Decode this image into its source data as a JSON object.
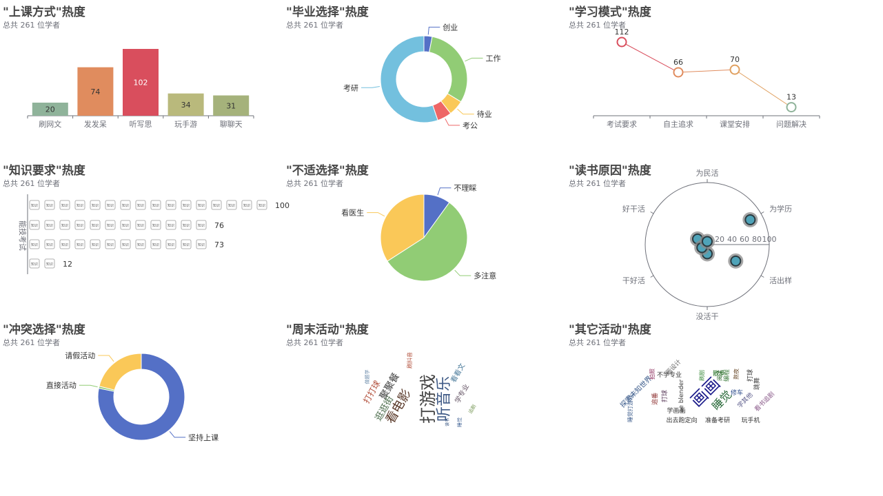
{
  "subtitle_text": "总共 261 位学者",
  "panels": [
    {
      "title": "\"上课方式\"热度"
    },
    {
      "title": "\"毕业选择\"热度"
    },
    {
      "title": "\"学习模式\"热度"
    },
    {
      "title": "\"知识要求\"热度"
    },
    {
      "title": "\"不适选择\"热度"
    },
    {
      "title": "\"读书原因\"热度"
    },
    {
      "title": "\"冲突选择\"热度"
    },
    {
      "title": "\"周末活动\"热度"
    },
    {
      "title": "\"其它活动\"热度"
    }
  ],
  "chart_data": [
    {
      "type": "bar",
      "title": "\"上课方式\"热度",
      "subtitle": "总共 261 位学者",
      "categories": [
        "刷网文",
        "发发呆",
        "听写思",
        "玩手游",
        "聊聊天"
      ],
      "values": [
        20,
        74,
        102,
        34,
        31
      ],
      "colors": [
        "#8fb39a",
        "#e08c5e",
        "#d94e5d",
        "#b9b97c",
        "#a5b27b"
      ],
      "ylim": [
        0,
        102
      ]
    },
    {
      "type": "pie",
      "variant": "donut",
      "title": "\"毕业选择\"热度",
      "subtitle": "总共 261 位学者",
      "slices": [
        {
          "label": "创业",
          "value": 8,
          "color": "#5470c6"
        },
        {
          "label": "工作",
          "value": 80,
          "color": "#91cc75"
        },
        {
          "label": "待业",
          "value": 15,
          "color": "#fac858"
        },
        {
          "label": "考公",
          "value": 14,
          "color": "#ee6666"
        },
        {
          "label": "考研",
          "value": 144,
          "color": "#73c0de"
        }
      ]
    },
    {
      "type": "line",
      "title": "\"学习模式\"热度",
      "subtitle": "总共 261 位学者",
      "categories": [
        "考试要求",
        "自主追求",
        "课堂安排",
        "问题解决"
      ],
      "values": [
        112,
        66,
        70,
        13
      ],
      "colors": [
        "#d94e5d",
        "#e08c5e",
        "#e0a060",
        "#8fb39a"
      ],
      "ylim": [
        0,
        112
      ]
    },
    {
      "type": "bar",
      "variant": "pictorial",
      "title": "\"知识要求\"热度",
      "subtitle": "总共 261 位学者",
      "ylabel": "能技考试",
      "values": [
        100,
        76,
        73,
        12
      ],
      "symbol_label": "知识",
      "symbol_unit": 6.25
    },
    {
      "type": "pie",
      "title": "\"不适选择\"热度",
      "subtitle": "总共 261 位学者",
      "slices": [
        {
          "label": "不理睬",
          "value": 26,
          "color": "#5470c6"
        },
        {
          "label": "多注意",
          "value": 146,
          "color": "#91cc75"
        },
        {
          "label": "看医生",
          "value": 89,
          "color": "#fac858"
        }
      ]
    },
    {
      "type": "scatter",
      "variant": "polar",
      "title": "\"读书原因\"热度",
      "subtitle": "总共 261 位学者",
      "angle_labels": [
        "为民活",
        "为学历",
        "活出样",
        "没活干",
        "干好活",
        "好干活"
      ],
      "radius_ticks": [
        20,
        40,
        60,
        80,
        100
      ],
      "points": [
        {
          "angle_label": "为学历",
          "r": 80
        },
        {
          "angle_label": "活出样",
          "r": 53
        },
        {
          "angle_label": "好干活",
          "r": 18
        },
        {
          "angle_label": "没活干",
          "r": 15
        },
        {
          "angle_label": "干好活",
          "r": 10
        },
        {
          "angle_label": "为民活",
          "r": 5
        }
      ]
    },
    {
      "type": "pie",
      "variant": "donut",
      "title": "\"冲突选择\"热度",
      "subtitle": "总共 261 位学者",
      "start_angle_deg": 0,
      "slices": [
        {
          "label": "坚持上课",
          "value": 204,
          "color": "#5470c6"
        },
        {
          "label": "直接活动",
          "value": 2,
          "color": "#91cc75"
        },
        {
          "label": "请假活动",
          "value": 55,
          "color": "#fac858"
        }
      ]
    },
    {
      "type": "wordcloud",
      "title": "\"周末活动\"热度",
      "subtitle": "总共 261 位学者",
      "words": [
        {
          "text": "打游戏",
          "size": 24,
          "color": "#444444",
          "rot": -90
        },
        {
          "text": "听音乐",
          "size": 22,
          "color": "#3f5a86",
          "rot": -90
        },
        {
          "text": "看电影",
          "size": 18,
          "color": "#5a3a2a",
          "rot": -60
        },
        {
          "text": "聚聚餐",
          "size": 14,
          "color": "#3b3b3b",
          "rot": -60
        },
        {
          "text": "逛逛街",
          "size": 13,
          "color": "#4a6b4a",
          "rot": -60
        },
        {
          "text": "打打球",
          "size": 12,
          "color": "#b2503c",
          "rot": -60
        },
        {
          "text": "看看文",
          "size": 10,
          "color": "#4a7a9a",
          "rot": -60
        },
        {
          "text": "学专业",
          "size": 10,
          "color": "#6a5a6a",
          "rot": -60
        },
        {
          "text": "刷抖音",
          "size": 8,
          "color": "#b2503c",
          "rot": -90
        },
        {
          "text": "追剧",
          "size": 7,
          "color": "#7a9a5a",
          "rot": -60
        },
        {
          "text": "睡觉",
          "size": 7,
          "color": "#4a6a9a",
          "rot": -90
        },
        {
          "text": "读书",
          "size": 6,
          "color": "#2a4a7a",
          "rot": -90
        },
        {
          "text": "做题学",
          "size": 7,
          "color": "#6a8aaa",
          "rot": -90
        }
      ]
    },
    {
      "type": "wordcloud",
      "title": "\"其它活动\"热度",
      "subtitle": "总共 261 位学者",
      "words": [
        {
          "text": "画画",
          "size": 24,
          "color": "#1a1a8a",
          "rot": -45
        },
        {
          "text": "睡觉",
          "size": 16,
          "color": "#2a6a3a",
          "rot": -45
        },
        {
          "text": "探索未知世界",
          "size": 10,
          "color": "#3a5a8a",
          "rot": -45
        },
        {
          "text": "画设计",
          "size": 9,
          "color": "#6a6a6a",
          "rot": -45
        },
        {
          "text": "不学专业",
          "size": 9,
          "color": "#333333",
          "rot": 0
        },
        {
          "text": "散步",
          "size": 9,
          "color": "#1a6a1a",
          "rot": 0
        },
        {
          "text": "学画画",
          "size": 9,
          "color": "#333333",
          "rot": 0
        },
        {
          "text": "打球",
          "size": 9,
          "color": "#5a3a5a",
          "rot": -90
        },
        {
          "text": "追番",
          "size": 9,
          "color": "#8a2a2a",
          "rot": -90
        },
        {
          "text": "ae blender",
          "size": 9,
          "color": "#333333",
          "rot": -90
        },
        {
          "text": "修车",
          "size": 9,
          "color": "#2a4a8a",
          "rot": 0
        },
        {
          "text": "编程",
          "size": 9,
          "color": "#3a7a3a",
          "rot": -90
        },
        {
          "text": "打球",
          "size": 9,
          "color": "#333333",
          "rot": -90
        },
        {
          "text": "跳舞",
          "size": 9,
          "color": "#4a4a4a",
          "rot": -90
        },
        {
          "text": "学其他",
          "size": 9,
          "color": "#5a5a8a",
          "rot": -45
        },
        {
          "text": "看书追剧",
          "size": 9,
          "color": "#8a5a8a",
          "rot": -45
        },
        {
          "text": "出去跑定向",
          "size": 9,
          "color": "#333333",
          "rot": 0
        },
        {
          "text": "准备考研",
          "size": 9,
          "color": "#333333",
          "rot": 0
        },
        {
          "text": "玩手机",
          "size": 9,
          "color": "#333333",
          "rot": 0
        },
        {
          "text": "睡觉打游戏",
          "size": 8,
          "color": "#3a5a8a",
          "rot": -90
        },
        {
          "text": "刷剧",
          "size": 8,
          "color": "#3a8a3a",
          "rot": -90
        },
        {
          "text": "拍照",
          "size": 8,
          "color": "#8a2a5a",
          "rot": -90
        },
        {
          "text": "熬夜",
          "size": 8,
          "color": "#6a4a2a",
          "rot": -90
        },
        {
          "text": "阅读",
          "size": 8,
          "color": "#1a5a1a",
          "rot": -90
        }
      ]
    }
  ]
}
